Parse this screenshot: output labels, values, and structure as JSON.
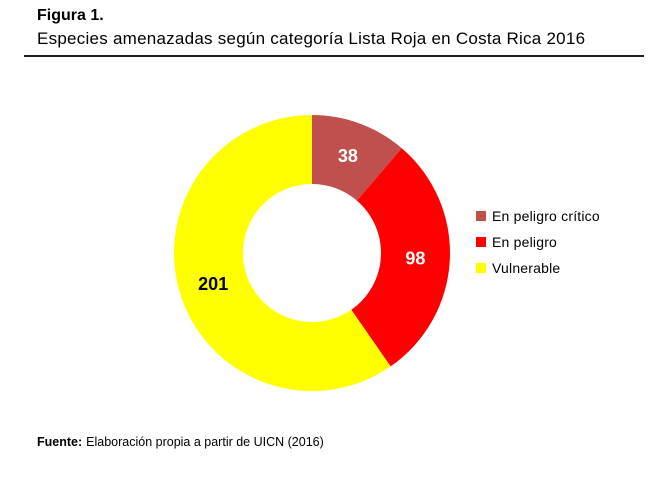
{
  "header": {
    "figure_label": "Figura 1.",
    "title": "Especies amenazadas según categoría Lista Roja en Costa Rica 2016"
  },
  "chart_data": {
    "type": "pie",
    "subtype": "donut",
    "title": "Especies amenazadas según categoría Lista Roja en Costa Rica 2016",
    "categories": [
      "En peligro crítico",
      "En peligro",
      "Vulnerable"
    ],
    "values": [
      38,
      98,
      201
    ],
    "colors": [
      "#C0504D",
      "#FF0000",
      "#FFFF00"
    ],
    "label_colors": [
      "#FFFFFF",
      "#FFFFFF",
      "#000000"
    ],
    "legend_position": "right",
    "legend_text_color": "#000000",
    "start_angle_deg": 0,
    "direction": "clockwise",
    "donut_hole_ratio": 0.5,
    "data_labels": "values"
  },
  "footer": {
    "source_prefix": "Fuente:",
    "source_text": "Elaboración propia a partir de UICN (2016)"
  }
}
